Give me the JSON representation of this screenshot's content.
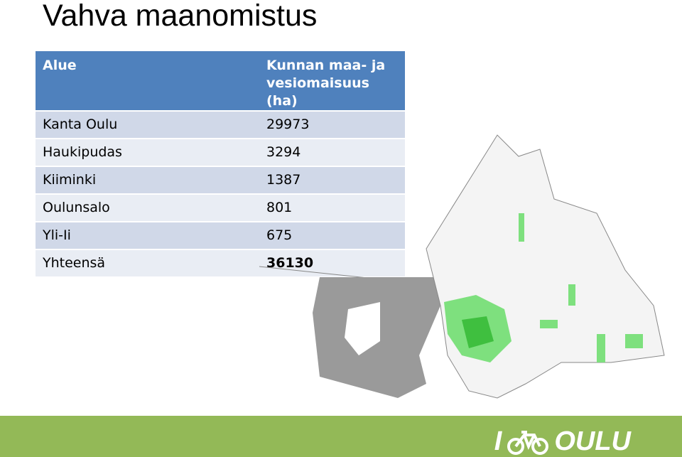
{
  "title": "Vahva maanomistus",
  "table": {
    "header": [
      "Alue",
      "Kunnan maa- ja vesiomaisuus (ha)"
    ],
    "rows": [
      [
        "Kanta Oulu",
        "29973"
      ],
      [
        "Haukipudas",
        "3294"
      ],
      [
        "Kiiminki",
        "1387"
      ],
      [
        "Oulunsalo",
        "801"
      ],
      [
        "Yli-Ii",
        "675"
      ],
      [
        "Yhteensä",
        "36130"
      ]
    ]
  },
  "logo": {
    "prefix": "I",
    "text": "OULU"
  }
}
